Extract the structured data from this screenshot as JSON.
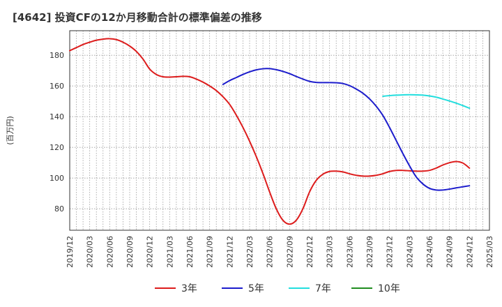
{
  "chart_data": {
    "type": "line",
    "title": "[4642]  投資CFの12か月移動合計の標準偏差の推移",
    "ylabel": "(百万円)",
    "ylim": [
      66,
      196
    ],
    "yticks": [
      80,
      100,
      120,
      140,
      160,
      180
    ],
    "xlim": [
      "2019-12",
      "2025-03"
    ],
    "xticks": [
      "2019/12",
      "2020/03",
      "2020/06",
      "2020/09",
      "2020/12",
      "2021/03",
      "2021/06",
      "2021/09",
      "2021/12",
      "2022/03",
      "2022/06",
      "2022/09",
      "2022/12",
      "2023/03",
      "2023/06",
      "2023/09",
      "2023/12",
      "2024/03",
      "2024/06",
      "2024/09",
      "2024/12",
      "2025/03"
    ],
    "grid": true,
    "legend_position": "bottom",
    "series": [
      {
        "name": "3年",
        "color": "#dd1c1c",
        "points": [
          [
            "2019-12",
            183.0
          ],
          [
            "2020-01",
            185.0
          ],
          [
            "2020-02",
            187.0
          ],
          [
            "2020-03",
            188.5
          ],
          [
            "2020-04",
            189.8
          ],
          [
            "2020-05",
            190.5
          ],
          [
            "2020-06",
            190.8
          ],
          [
            "2020-07",
            190.2
          ],
          [
            "2020-08",
            188.5
          ],
          [
            "2020-09",
            186.0
          ],
          [
            "2020-10",
            182.5
          ],
          [
            "2020-11",
            177.5
          ],
          [
            "2020-12",
            171.0
          ],
          [
            "2021-01",
            167.5
          ],
          [
            "2021-02",
            166.0
          ],
          [
            "2021-03",
            165.8
          ],
          [
            "2021-04",
            166.0
          ],
          [
            "2021-05",
            166.3
          ],
          [
            "2021-06",
            166.0
          ],
          [
            "2021-07",
            164.5
          ],
          [
            "2021-08",
            162.5
          ],
          [
            "2021-09",
            160.0
          ],
          [
            "2021-10",
            157.0
          ],
          [
            "2021-11",
            153.0
          ],
          [
            "2021-12",
            148.0
          ],
          [
            "2022-01",
            141.0
          ],
          [
            "2022-02",
            133.0
          ],
          [
            "2022-03",
            124.0
          ],
          [
            "2022-04",
            114.0
          ],
          [
            "2022-05",
            103.0
          ],
          [
            "2022-06",
            91.0
          ],
          [
            "2022-07",
            80.0
          ],
          [
            "2022-08",
            72.5
          ],
          [
            "2022-09",
            70.0
          ],
          [
            "2022-10",
            72.5
          ],
          [
            "2022-11",
            80.0
          ],
          [
            "2022-12",
            91.0
          ],
          [
            "2023-01",
            98.5
          ],
          [
            "2023-02",
            102.5
          ],
          [
            "2023-03",
            104.3
          ],
          [
            "2023-04",
            104.5
          ],
          [
            "2023-05",
            104.0
          ],
          [
            "2023-06",
            102.8
          ],
          [
            "2023-07",
            101.8
          ],
          [
            "2023-08",
            101.3
          ],
          [
            "2023-09",
            101.3
          ],
          [
            "2023-10",
            101.8
          ],
          [
            "2023-11",
            102.8
          ],
          [
            "2023-12",
            104.3
          ],
          [
            "2024-01",
            105.0
          ],
          [
            "2024-02",
            105.0
          ],
          [
            "2024-03",
            104.7
          ],
          [
            "2024-04",
            104.5
          ],
          [
            "2024-05",
            104.5
          ],
          [
            "2024-06",
            105.0
          ],
          [
            "2024-07",
            106.5
          ],
          [
            "2024-08",
            108.5
          ],
          [
            "2024-09",
            110.0
          ],
          [
            "2024-10",
            110.8
          ],
          [
            "2024-11",
            109.8
          ],
          [
            "2024-12",
            106.5
          ]
        ]
      },
      {
        "name": "5年",
        "color": "#1c1ccc",
        "points": [
          [
            "2021-11",
            161.0
          ],
          [
            "2021-12",
            163.5
          ],
          [
            "2022-01",
            165.5
          ],
          [
            "2022-02",
            167.5
          ],
          [
            "2022-03",
            169.2
          ],
          [
            "2022-04",
            170.5
          ],
          [
            "2022-05",
            171.2
          ],
          [
            "2022-06",
            171.3
          ],
          [
            "2022-07",
            170.6
          ],
          [
            "2022-08",
            169.5
          ],
          [
            "2022-09",
            168.0
          ],
          [
            "2022-10",
            166.2
          ],
          [
            "2022-11",
            164.5
          ],
          [
            "2022-12",
            163.0
          ],
          [
            "2023-01",
            162.3
          ],
          [
            "2023-02",
            162.2
          ],
          [
            "2023-03",
            162.2
          ],
          [
            "2023-04",
            162.1
          ],
          [
            "2023-05",
            161.6
          ],
          [
            "2023-06",
            160.2
          ],
          [
            "2023-07",
            158.0
          ],
          [
            "2023-08",
            155.3
          ],
          [
            "2023-09",
            151.6
          ],
          [
            "2023-10",
            146.8
          ],
          [
            "2023-11",
            140.8
          ],
          [
            "2023-12",
            133.0
          ],
          [
            "2024-01",
            124.5
          ],
          [
            "2024-02",
            116.0
          ],
          [
            "2024-03",
            108.0
          ],
          [
            "2024-04",
            100.8
          ],
          [
            "2024-05",
            96.2
          ],
          [
            "2024-06",
            93.3
          ],
          [
            "2024-07",
            92.2
          ],
          [
            "2024-08",
            92.2
          ],
          [
            "2024-09",
            92.8
          ],
          [
            "2024-10",
            93.6
          ],
          [
            "2024-11",
            94.3
          ],
          [
            "2024-12",
            95.0
          ]
        ]
      },
      {
        "name": "7年",
        "color": "#22dede",
        "points": [
          [
            "2023-11",
            153.3
          ],
          [
            "2023-12",
            153.7
          ],
          [
            "2024-01",
            154.0
          ],
          [
            "2024-02",
            154.2
          ],
          [
            "2024-03",
            154.3
          ],
          [
            "2024-04",
            154.2
          ],
          [
            "2024-05",
            154.0
          ],
          [
            "2024-06",
            153.5
          ],
          [
            "2024-07",
            152.7
          ],
          [
            "2024-08",
            151.5
          ],
          [
            "2024-09",
            150.2
          ],
          [
            "2024-10",
            148.8
          ],
          [
            "2024-11",
            147.2
          ],
          [
            "2024-12",
            145.5
          ]
        ]
      },
      {
        "name": "10年",
        "color": "#1f8c1f",
        "points": []
      }
    ]
  }
}
